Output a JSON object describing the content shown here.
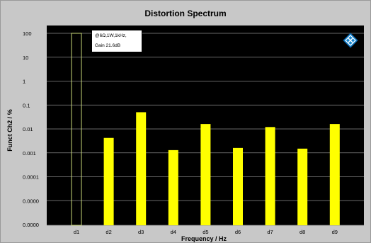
{
  "chart_data": {
    "type": "bar",
    "title": "Distortion Spectrum",
    "xlabel": "Frequency / Hz",
    "ylabel": "Funct Ch2 / %",
    "y_scale": "log",
    "y_tick_labels": [
      "100",
      "10",
      "1",
      "0.1",
      "0.01",
      "0.001",
      "0.0001",
      "0.0000",
      "0.0000"
    ],
    "categories": [
      "d1",
      "d2",
      "d3",
      "d4",
      "d5",
      "d6",
      "d7",
      "d8",
      "d9"
    ],
    "values": [
      100,
      0.0042,
      0.05,
      0.0013,
      0.016,
      0.0016,
      0.012,
      0.0015,
      0.016
    ],
    "bar_color": "#ffff00",
    "fundamental_color": "#c8d878",
    "annotation": [
      "@6Ω,1W,1kHz,",
      "Gain 21.6dB"
    ],
    "grid": true
  }
}
